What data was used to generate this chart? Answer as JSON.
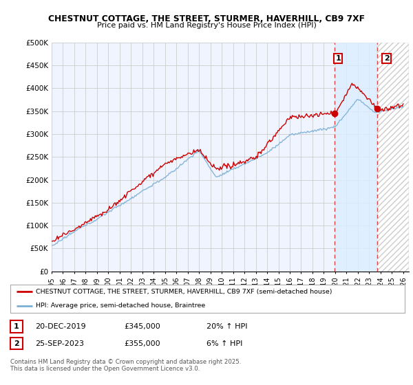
{
  "title": "CHESTNUT COTTAGE, THE STREET, STURMER, HAVERHILL, CB9 7XF",
  "subtitle": "Price paid vs. HM Land Registry's House Price Index (HPI)",
  "ylabel_ticks": [
    "£0",
    "£50K",
    "£100K",
    "£150K",
    "£200K",
    "£250K",
    "£300K",
    "£350K",
    "£400K",
    "£450K",
    "£500K"
  ],
  "ytick_values": [
    0,
    50000,
    100000,
    150000,
    200000,
    250000,
    300000,
    350000,
    400000,
    450000,
    500000
  ],
  "ylim": [
    0,
    500000
  ],
  "xlim_start": 1995.0,
  "xlim_end": 2026.5,
  "point1_x": 2019.97,
  "point1_y": 345000,
  "point2_x": 2023.73,
  "point2_y": 355000,
  "annotation1": "1",
  "annotation2": "2",
  "legend_line1": "CHESTNUT COTTAGE, THE STREET, STURMER, HAVERHILL, CB9 7XF (semi-detached house)",
  "legend_line2": "HPI: Average price, semi-detached house, Braintree",
  "table_row1": [
    "1",
    "20-DEC-2019",
    "£345,000",
    "20% ↑ HPI"
  ],
  "table_row2": [
    "2",
    "25-SEP-2023",
    "£355,000",
    "6% ↑ HPI"
  ],
  "footnote": "Contains HM Land Registry data © Crown copyright and database right 2025.\nThis data is licensed under the Open Government Licence v3.0.",
  "color_red": "#cc0000",
  "color_blue": "#7bafd4",
  "color_grid": "#cccccc",
  "color_dashed": "#dd4444",
  "background_color": "#ffffff",
  "plot_bg": "#f0f4ff",
  "shade_between_color": "#ddeeff",
  "hatch_color": "#cccccc"
}
